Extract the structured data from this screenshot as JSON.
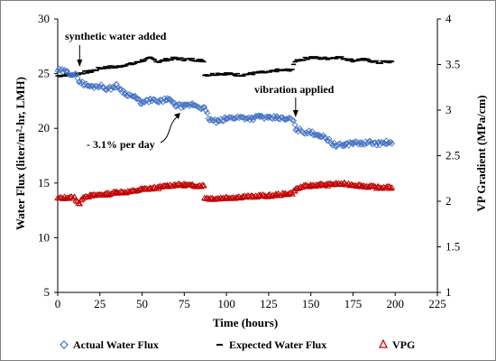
{
  "chart_data": {
    "type": "scatter",
    "xlabel": "Time (hours)",
    "ylabel_left": "Water Flux (liter/m²-hr, LMH)",
    "ylabel_right": "VP Gradient (MPa/cm)",
    "xlim": [
      0,
      225
    ],
    "ylim_left": [
      5,
      30
    ],
    "ylim_right": [
      1,
      4
    ],
    "x_ticks": [
      "0",
      "25",
      "50",
      "75",
      "100",
      "125",
      "150",
      "175",
      "200",
      "225"
    ],
    "y_left_ticks": [
      "5",
      "10",
      "15",
      "20",
      "25",
      "30"
    ],
    "y_right_ticks": [
      "1",
      "1.5",
      "2",
      "2.5",
      "3",
      "3.5",
      "4"
    ],
    "grid": false,
    "legend_placement": "bottom",
    "colors": {
      "actual": "#4472c4",
      "expected": "#000000",
      "vpg": "#c00000"
    },
    "series": [
      {
        "name": "Actual Water Flux",
        "axis": "left",
        "marker": "diamond-open",
        "x": [
          0,
          4,
          8,
          11,
          13,
          16,
          20,
          25,
          30,
          35,
          40,
          45,
          50,
          55,
          60,
          65,
          70,
          75,
          80,
          85,
          87,
          90,
          95,
          100,
          105,
          110,
          115,
          120,
          125,
          130,
          135,
          139,
          141,
          145,
          150,
          155,
          160,
          163,
          165,
          170,
          175,
          180,
          185,
          190,
          195,
          198
        ],
        "y": [
          25.3,
          25.2,
          25.0,
          24.8,
          24.3,
          24.0,
          23.8,
          23.9,
          23.6,
          23.9,
          23.2,
          22.9,
          22.3,
          22.6,
          22.4,
          22.7,
          22.1,
          22.0,
          22.2,
          21.9,
          21.8,
          20.8,
          20.6,
          20.9,
          21.0,
          21.0,
          20.9,
          21.1,
          20.9,
          21.0,
          20.8,
          20.9,
          20.0,
          19.7,
          19.6,
          19.4,
          19.0,
          18.6,
          18.4,
          18.5,
          18.7,
          18.6,
          18.7,
          18.6,
          18.7,
          18.6
        ]
      },
      {
        "name": "Expected Water Flux",
        "axis": "left",
        "marker": "dash",
        "x": [
          0,
          5,
          10,
          15,
          20,
          25,
          30,
          35,
          40,
          45,
          50,
          55,
          60,
          65,
          70,
          75,
          80,
          85,
          87,
          90,
          95,
          100,
          105,
          110,
          115,
          120,
          125,
          130,
          135,
          139,
          141,
          145,
          150,
          155,
          160,
          165,
          170,
          175,
          180,
          185,
          190,
          195,
          198
        ],
        "y": [
          24.8,
          24.9,
          24.9,
          25.1,
          25.2,
          25.5,
          25.6,
          25.6,
          25.8,
          25.9,
          26.2,
          26.4,
          26.1,
          26.3,
          26.4,
          26.3,
          26.3,
          26.2,
          24.9,
          24.9,
          25.0,
          25.0,
          24.9,
          24.9,
          25.0,
          25.1,
          25.1,
          25.3,
          25.3,
          25.4,
          26.2,
          26.3,
          26.5,
          26.4,
          26.4,
          26.5,
          26.4,
          26.2,
          26.3,
          26.2,
          26.0,
          26.1,
          26.1
        ]
      },
      {
        "name": "VPG",
        "axis": "right",
        "marker": "triangle-open",
        "x": [
          0,
          5,
          10,
          13,
          15,
          20,
          25,
          30,
          35,
          40,
          45,
          50,
          55,
          60,
          65,
          70,
          75,
          80,
          85,
          87,
          90,
          95,
          100,
          105,
          110,
          115,
          120,
          125,
          130,
          135,
          139,
          141,
          145,
          150,
          155,
          160,
          165,
          170,
          175,
          180,
          185,
          190,
          195,
          198
        ],
        "y": [
          2.03,
          2.04,
          2.04,
          1.97,
          2.05,
          2.06,
          2.07,
          2.08,
          2.1,
          2.1,
          2.11,
          2.13,
          2.14,
          2.15,
          2.17,
          2.18,
          2.18,
          2.17,
          2.17,
          2.04,
          2.03,
          2.03,
          2.04,
          2.04,
          2.05,
          2.05,
          2.06,
          2.06,
          2.07,
          2.08,
          2.09,
          2.13,
          2.16,
          2.17,
          2.18,
          2.18,
          2.19,
          2.19,
          2.18,
          2.17,
          2.16,
          2.15,
          2.15,
          2.15
        ]
      }
    ],
    "annotations": [
      {
        "text": "synthetic water added",
        "point_x": 13,
        "point_y": 25.5
      },
      {
        "text": "vibration applied",
        "point_x": 141,
        "point_y": 21.0
      },
      {
        "text": "- 3.1% per day",
        "point_x": 70,
        "point_y": 21.9
      }
    ]
  }
}
